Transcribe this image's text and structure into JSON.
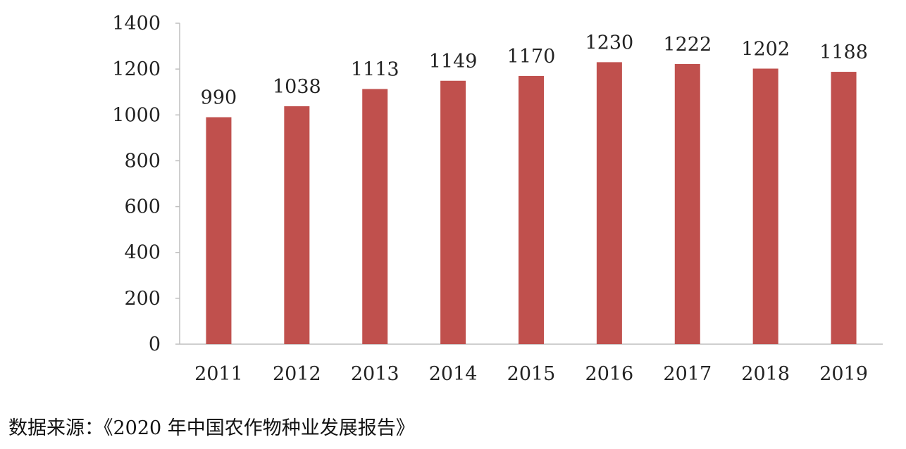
{
  "chart_data": {
    "type": "bar",
    "categories": [
      "2011",
      "2012",
      "2013",
      "2014",
      "2015",
      "2016",
      "2017",
      "2018",
      "2019"
    ],
    "values": [
      990,
      1038,
      1113,
      1149,
      1170,
      1230,
      1222,
      1202,
      1188
    ],
    "title": "",
    "xlabel": "",
    "ylabel": "",
    "ylim": [
      0,
      1400
    ],
    "yticks": [
      0,
      200,
      400,
      600,
      800,
      1000,
      1200,
      1400
    ],
    "grid": false,
    "legend": "none",
    "bar_color": "#C0504D",
    "data_labels": true
  },
  "source_note": "数据来源：《2020 年中国农作物种业发展报告》"
}
